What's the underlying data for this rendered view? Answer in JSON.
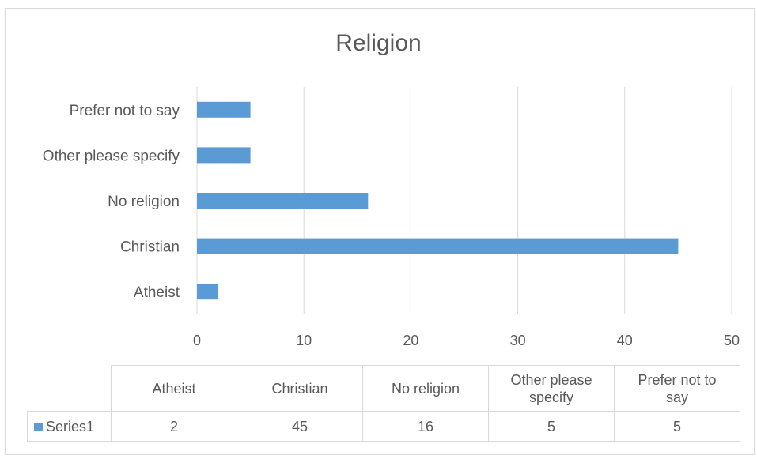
{
  "chart_data": {
    "type": "bar",
    "orientation": "horizontal",
    "title": "Religion",
    "categories": [
      "Atheist",
      "Christian",
      "No religion",
      "Other please specify",
      "Prefer not to say"
    ],
    "series": [
      {
        "name": "Series1",
        "values": [
          2,
          45,
          16,
          5,
          5
        ],
        "color": "#5b9bd5"
      }
    ],
    "xlim": [
      0,
      50
    ],
    "x_ticks": [
      0,
      10,
      20,
      30,
      40,
      50
    ],
    "grid": true,
    "data_table": {
      "headers": [
        "Atheist",
        "Christian",
        "No religion",
        "Other please\nspecify",
        "Prefer not to\nsay"
      ],
      "row_label": "Series1",
      "values": [
        "2",
        "45",
        "16",
        "5",
        "5"
      ]
    }
  }
}
